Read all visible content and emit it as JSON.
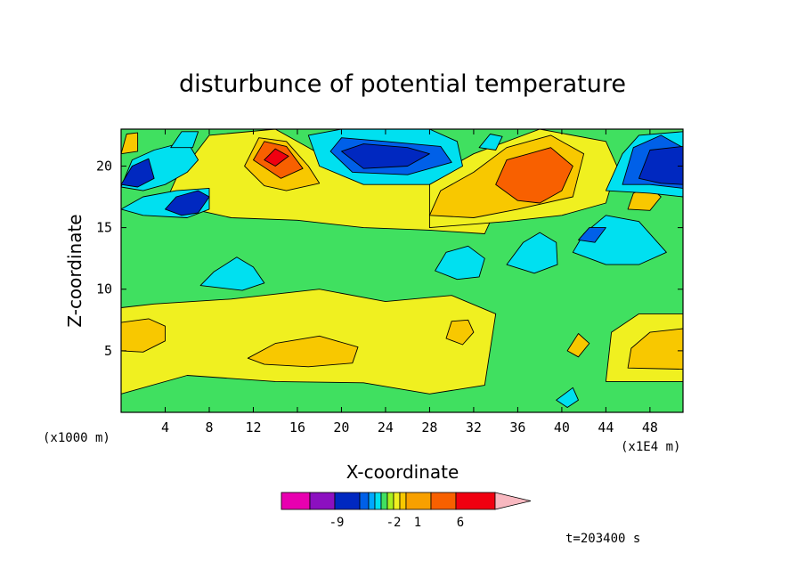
{
  "chart_data": {
    "type": "heatmap",
    "title": "disturbunce of potential temperature",
    "xlabel": "X-coordinate",
    "ylabel": "Z-coordinate",
    "x_unit_label": "(x1E4 m)",
    "y_unit_label": "(x1000 m)",
    "xlim": [
      0,
      51
    ],
    "ylim": [
      0,
      23
    ],
    "x_ticks": [
      "4",
      "8",
      "12",
      "16",
      "20",
      "24",
      "28",
      "32",
      "36",
      "40",
      "44",
      "48"
    ],
    "y_ticks": [
      "5",
      "10",
      "15",
      "20"
    ],
    "colorbar_labels": [
      "-9",
      "-2",
      "1",
      "6"
    ],
    "colorbar_colors": [
      "#e800b0",
      "#8c10c0",
      "#0028c0",
      "#0060e8",
      "#00a8ff",
      "#00e0f0",
      "#40e060",
      "#a8f020",
      "#f0f020",
      "#f8c800",
      "#f8a000",
      "#f86000",
      "#f00010",
      "#f87878",
      "#f8b8c0"
    ],
    "annotation": "t=203400 s",
    "regions": [
      {
        "level": "#40e060",
        "pts": [
          [
            0,
            0
          ],
          [
            51,
            0
          ],
          [
            51,
            23
          ],
          [
            0,
            23
          ]
        ]
      },
      {
        "level": "#f0f020",
        "pts": [
          [
            0,
            1.5
          ],
          [
            6,
            3
          ],
          [
            14,
            2.5
          ],
          [
            22,
            2.4
          ],
          [
            28,
            1.5
          ],
          [
            33,
            2.2
          ],
          [
            34,
            8
          ],
          [
            30,
            9.5
          ],
          [
            24,
            9
          ],
          [
            18,
            10
          ],
          [
            10,
            9.2
          ],
          [
            3,
            8.8
          ],
          [
            0,
            8.5
          ]
        ]
      },
      {
        "level": "#f8c800",
        "pts": [
          [
            11.5,
            4.4
          ],
          [
            14,
            5.6
          ],
          [
            18,
            6.2
          ],
          [
            21.5,
            5.3
          ],
          [
            21,
            4
          ],
          [
            17,
            3.7
          ],
          [
            13,
            3.9
          ]
        ]
      },
      {
        "level": "#f8c800",
        "pts": [
          [
            0,
            5
          ],
          [
            2,
            4.9
          ],
          [
            4,
            5.8
          ],
          [
            4,
            7
          ],
          [
            2.5,
            7.6
          ],
          [
            0,
            7.3
          ]
        ]
      },
      {
        "level": "#f8c800",
        "pts": [
          [
            29.5,
            6
          ],
          [
            31,
            5.5
          ],
          [
            32,
            6.5
          ],
          [
            31.5,
            7.5
          ],
          [
            30,
            7.4
          ]
        ]
      },
      {
        "level": "#f0f020",
        "pts": [
          [
            44,
            2.5
          ],
          [
            51,
            2.5
          ],
          [
            51,
            8
          ],
          [
            47,
            8
          ],
          [
            44.5,
            6.5
          ]
        ]
      },
      {
        "level": "#f8c800",
        "pts": [
          [
            46,
            3.6
          ],
          [
            51,
            3.5
          ],
          [
            51,
            6.8
          ],
          [
            48,
            6.5
          ],
          [
            46.3,
            5.2
          ]
        ]
      },
      {
        "level": "#f0f020",
        "pts": [
          [
            10,
            15.8
          ],
          [
            16,
            15.6
          ],
          [
            22,
            15
          ],
          [
            28,
            14.8
          ],
          [
            33,
            14.5
          ],
          [
            34,
            16.5
          ],
          [
            28,
            19
          ],
          [
            20,
            20
          ],
          [
            14,
            23
          ],
          [
            8,
            22.5
          ],
          [
            5,
            19
          ],
          [
            4,
            17
          ]
        ]
      },
      {
        "level": "#f8c800",
        "pts": [
          [
            11.2,
            20
          ],
          [
            12.5,
            22.3
          ],
          [
            15,
            22
          ],
          [
            17,
            20
          ],
          [
            18,
            18.6
          ],
          [
            15,
            18
          ],
          [
            13,
            18.4
          ]
        ]
      },
      {
        "level": "#f86000",
        "pts": [
          [
            12,
            20.5
          ],
          [
            13,
            22
          ],
          [
            15,
            21.6
          ],
          [
            16.5,
            19.8
          ],
          [
            14.5,
            19
          ]
        ]
      },
      {
        "level": "#f00010",
        "pts": [
          [
            13,
            20.5
          ],
          [
            14,
            21.4
          ],
          [
            15.2,
            20.8
          ],
          [
            14,
            20
          ]
        ]
      },
      {
        "level": "#f0f020",
        "pts": [
          [
            28,
            15
          ],
          [
            35,
            15.5
          ],
          [
            40,
            16
          ],
          [
            44,
            17
          ],
          [
            45,
            20
          ],
          [
            44,
            22
          ],
          [
            38,
            23
          ],
          [
            32,
            21
          ],
          [
            28,
            19
          ]
        ]
      },
      {
        "level": "#f8c800",
        "pts": [
          [
            28,
            16
          ],
          [
            32,
            15.8
          ],
          [
            36,
            16.5
          ],
          [
            41,
            17.5
          ],
          [
            42,
            21
          ],
          [
            39,
            22.5
          ],
          [
            35,
            21.5
          ],
          [
            32,
            19.5
          ],
          [
            29,
            18
          ]
        ]
      },
      {
        "level": "#f86000",
        "pts": [
          [
            34,
            18.5
          ],
          [
            35,
            20.5
          ],
          [
            37,
            21
          ],
          [
            39,
            21.5
          ],
          [
            41,
            20
          ],
          [
            40,
            18
          ],
          [
            38,
            17
          ],
          [
            36,
            17.2
          ]
        ]
      },
      {
        "level": "#f8c800",
        "pts": [
          [
            46,
            16.5
          ],
          [
            48,
            16.4
          ],
          [
            49,
            17.5
          ],
          [
            48,
            18.3
          ],
          [
            46.5,
            17.8
          ]
        ]
      },
      {
        "level": "#f8c800",
        "pts": [
          [
            40.5,
            5
          ],
          [
            41.5,
            4.5
          ],
          [
            42.5,
            5.6
          ],
          [
            41.5,
            6.4
          ]
        ]
      },
      {
        "level": "#00e0f0",
        "pts": [
          [
            7.2,
            10.3
          ],
          [
            8.4,
            11.4
          ],
          [
            10.5,
            12.6
          ],
          [
            12,
            11.8
          ],
          [
            13,
            10.5
          ],
          [
            11,
            9.9
          ]
        ]
      },
      {
        "level": "#00e0f0",
        "pts": [
          [
            28.5,
            11.5
          ],
          [
            29.5,
            13
          ],
          [
            31.5,
            13.5
          ],
          [
            33,
            12.5
          ],
          [
            32.5,
            11
          ],
          [
            30.5,
            10.8
          ]
        ]
      },
      {
        "level": "#00e0f0",
        "pts": [
          [
            35,
            12
          ],
          [
            36.5,
            13.8
          ],
          [
            38,
            14.6
          ],
          [
            39.5,
            13.8
          ],
          [
            39.6,
            12
          ],
          [
            37.5,
            11.3
          ]
        ]
      },
      {
        "level": "#00e0f0",
        "pts": [
          [
            41,
            13
          ],
          [
            42,
            14.5
          ],
          [
            44,
            16
          ],
          [
            47,
            15.5
          ],
          [
            49.5,
            13
          ],
          [
            47,
            12
          ],
          [
            44,
            12
          ]
        ]
      },
      {
        "level": "#0060e8",
        "pts": [
          [
            41.5,
            14
          ],
          [
            42.5,
            15
          ],
          [
            44,
            15
          ],
          [
            43,
            13.8
          ]
        ]
      },
      {
        "level": "#00e0f0",
        "pts": [
          [
            0,
            16.5
          ],
          [
            2,
            17.5
          ],
          [
            5,
            18
          ],
          [
            8,
            18.2
          ],
          [
            8,
            16.5
          ],
          [
            6,
            15.8
          ],
          [
            2,
            16
          ]
        ]
      },
      {
        "level": "#0028c0",
        "pts": [
          [
            4,
            16.5
          ],
          [
            5,
            17.5
          ],
          [
            7,
            18
          ],
          [
            8,
            17.5
          ],
          [
            7,
            16.2
          ],
          [
            5.5,
            16
          ]
        ]
      },
      {
        "level": "#00e0f0",
        "pts": [
          [
            0,
            18.3
          ],
          [
            1,
            20.5
          ],
          [
            3,
            21.3
          ],
          [
            6,
            22
          ],
          [
            7,
            20.5
          ],
          [
            6,
            19.5
          ],
          [
            4,
            18.5
          ],
          [
            2,
            18
          ]
        ]
      },
      {
        "level": "#0028c0",
        "pts": [
          [
            0,
            18.5
          ],
          [
            1,
            20
          ],
          [
            2.5,
            20.6
          ],
          [
            3,
            19
          ],
          [
            1.5,
            18.3
          ]
        ]
      },
      {
        "level": "#00e0f0",
        "pts": [
          [
            17,
            22.5
          ],
          [
            18,
            20
          ],
          [
            22,
            18.5
          ],
          [
            28,
            18.5
          ],
          [
            31,
            20
          ],
          [
            30.5,
            22
          ],
          [
            28,
            23
          ],
          [
            20,
            23
          ]
        ]
      },
      {
        "level": "#0060e8",
        "pts": [
          [
            19,
            21.2
          ],
          [
            21,
            19.5
          ],
          [
            26,
            19.3
          ],
          [
            30,
            20.3
          ],
          [
            29,
            21.6
          ],
          [
            24,
            22
          ],
          [
            20,
            22.3
          ]
        ]
      },
      {
        "level": "#0028c0",
        "pts": [
          [
            20,
            21.2
          ],
          [
            22,
            19.8
          ],
          [
            26,
            20
          ],
          [
            28,
            21
          ],
          [
            26,
            21.5
          ],
          [
            22,
            21.8
          ]
        ]
      },
      {
        "level": "#00e0f0",
        "pts": [
          [
            44,
            18
          ],
          [
            45.5,
            21
          ],
          [
            47,
            22.5
          ],
          [
            51,
            22.8
          ],
          [
            51,
            17.5
          ],
          [
            48,
            17.8
          ]
        ]
      },
      {
        "level": "#0060e8",
        "pts": [
          [
            45.5,
            18.5
          ],
          [
            46.5,
            21.5
          ],
          [
            49,
            22.5
          ],
          [
            51,
            21.5
          ],
          [
            51,
            18.2
          ],
          [
            48,
            18.5
          ]
        ]
      },
      {
        "level": "#0028c0",
        "pts": [
          [
            47,
            19
          ],
          [
            48,
            21.3
          ],
          [
            51,
            21.6
          ],
          [
            51,
            18.5
          ],
          [
            49,
            18.6
          ]
        ]
      },
      {
        "level": "#00e0f0",
        "pts": [
          [
            39.5,
            1
          ],
          [
            40.5,
            0.4
          ],
          [
            41.5,
            1
          ],
          [
            41,
            2
          ]
        ]
      },
      {
        "level": "#f8c800",
        "pts": [
          [
            0,
            21
          ],
          [
            0.5,
            22.6
          ],
          [
            1.5,
            22.7
          ],
          [
            1.5,
            21.2
          ]
        ]
      },
      {
        "level": "#00e0f0",
        "pts": [
          [
            4.5,
            21.5
          ],
          [
            5.5,
            22.8
          ],
          [
            7,
            22.8
          ],
          [
            6.5,
            21.5
          ]
        ]
      },
      {
        "level": "#00e0f0",
        "pts": [
          [
            32.5,
            21.5
          ],
          [
            33.5,
            22.6
          ],
          [
            34.6,
            22.4
          ],
          [
            34,
            21.3
          ]
        ]
      }
    ]
  }
}
